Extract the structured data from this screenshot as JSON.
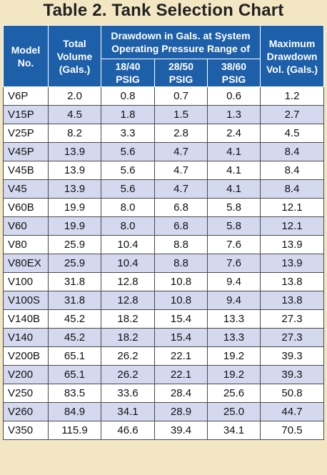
{
  "title": "Table 2. Tank Selection Chart",
  "headers": {
    "model": "Model No.",
    "total_volume": "Total Volume (Gals.)",
    "drawdown_group": "Drawdown in Gals. at System Operating Pressure Range of",
    "range_1": "18/40 PSIG",
    "range_2": "28/50 PSIG",
    "range_3": "38/60 PSIG",
    "max_drawdown": "Maximum Drawdown Vol. (Gals.)"
  },
  "colors": {
    "header_bg": "#1d5fa8",
    "stripe": "#d4d9ef",
    "background": "#f3e7c3"
  },
  "rows": [
    [
      "V6P",
      "2.0",
      "0.8",
      "0.7",
      "0.6",
      "1.2"
    ],
    [
      "V15P",
      "4.5",
      "1.8",
      "1.5",
      "1.3",
      "2.7"
    ],
    [
      "V25P",
      "8.2",
      "3.3",
      "2.8",
      "2.4",
      "4.5"
    ],
    [
      "V45P",
      "13.9",
      "5.6",
      "4.7",
      "4.1",
      "8.4"
    ],
    [
      "V45B",
      "13.9",
      "5.6",
      "4.7",
      "4.1",
      "8.4"
    ],
    [
      "V45",
      "13.9",
      "5.6",
      "4.7",
      "4.1",
      "8.4"
    ],
    [
      "V60B",
      "19.9",
      "8.0",
      "6.8",
      "5.8",
      "12.1"
    ],
    [
      "V60",
      "19.9",
      "8.0",
      "6.8",
      "5.8",
      "12.1"
    ],
    [
      "V80",
      "25.9",
      "10.4",
      "8.8",
      "7.6",
      "13.9"
    ],
    [
      "V80EX",
      "25.9",
      "10.4",
      "8.8",
      "7.6",
      "13.9"
    ],
    [
      "V100",
      "31.8",
      "12.8",
      "10.8",
      "9.4",
      "13.8"
    ],
    [
      "V100S",
      "31.8",
      "12.8",
      "10.8",
      "9.4",
      "13.8"
    ],
    [
      "V140B",
      "45.2",
      "18.2",
      "15.4",
      "13.3",
      "27.3"
    ],
    [
      "V140",
      "45.2",
      "18.2",
      "15.4",
      "13.3",
      "27.3"
    ],
    [
      "V200B",
      "65.1",
      "26.2",
      "22.1",
      "19.2",
      "39.3"
    ],
    [
      "V200",
      "65.1",
      "26.2",
      "22.1",
      "19.2",
      "39.3"
    ],
    [
      "V250",
      "83.5",
      "33.6",
      "28.4",
      "25.6",
      "50.8"
    ],
    [
      "V260",
      "84.9",
      "34.1",
      "28.9",
      "25.0",
      "44.7"
    ],
    [
      "V350",
      "115.9",
      "46.6",
      "39.4",
      "34.1",
      "70.5"
    ]
  ]
}
